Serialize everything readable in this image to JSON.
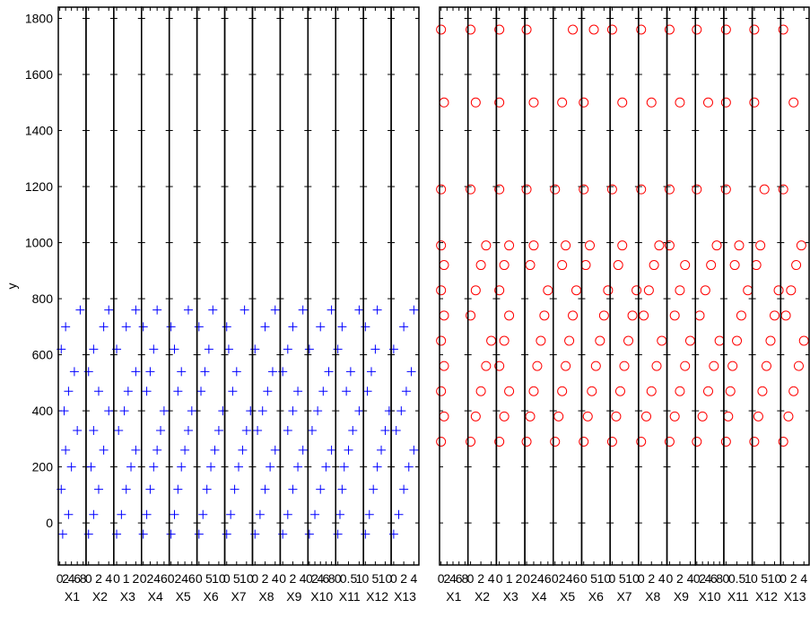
{
  "chart_data": [
    {
      "type": "scatter",
      "marker": "+",
      "color": "#0000ff",
      "ylabel": "y",
      "ylim": [
        -150,
        1840
      ],
      "yticks": [
        0,
        200,
        400,
        600,
        800,
        1000,
        1200,
        1400,
        1600,
        1800
      ],
      "y": [
        -40,
        30,
        120,
        200,
        260,
        330,
        400,
        470,
        540,
        620,
        700,
        760
      ],
      "panels": [
        {
          "xlabel": "X1",
          "xlim": [
            -0.5,
            9
          ],
          "xticks": [
            0,
            2,
            4,
            6,
            8
          ],
          "x": [
            1,
            3,
            0.5,
            4,
            2,
            6,
            1.5,
            3,
            5,
            0.5,
            2,
            7
          ]
        },
        {
          "xlabel": "X2",
          "xlim": [
            -0.5,
            5
          ],
          "xticks": [
            0,
            2,
            4
          ],
          "x": [
            0,
            1,
            2,
            0.5,
            3,
            1,
            4,
            2,
            0,
            1,
            3,
            4
          ]
        },
        {
          "xlabel": "X3",
          "xlim": [
            -0.3,
            2.6
          ],
          "xticks": [
            0,
            1,
            2
          ],
          "x": [
            0,
            0.5,
            1,
            1.5,
            2,
            0.2,
            0.8,
            1.2,
            2,
            0,
            1,
            2
          ]
        },
        {
          "xlabel": "X4",
          "xlim": [
            -0.5,
            7.5
          ],
          "xticks": [
            0,
            2,
            4,
            6
          ],
          "x": [
            0,
            1,
            2,
            3,
            4,
            5,
            6,
            1,
            2,
            3,
            0,
            4
          ]
        },
        {
          "xlabel": "X5",
          "xlim": [
            -0.5,
            7.5
          ],
          "xticks": [
            0,
            2,
            4,
            6
          ],
          "x": [
            0,
            1,
            2,
            3,
            4,
            5,
            6,
            2,
            3,
            1,
            0,
            5
          ]
        },
        {
          "xlabel": "X6",
          "xlim": [
            -1,
            13
          ],
          "xticks": [
            0,
            5,
            10
          ],
          "x": [
            0,
            2,
            4,
            6,
            8,
            10,
            12,
            1,
            3,
            5,
            0,
            7
          ]
        },
        {
          "xlabel": "X7",
          "xlim": [
            -1,
            13
          ],
          "xticks": [
            0,
            5,
            10
          ],
          "x": [
            0,
            2,
            4,
            6,
            8,
            10,
            12,
            3,
            5,
            1,
            0,
            9
          ]
        },
        {
          "xlabel": "X8",
          "xlim": [
            -0.5,
            5
          ],
          "xticks": [
            0,
            2,
            4
          ],
          "x": [
            0,
            1,
            2,
            3,
            4,
            0.5,
            1.5,
            2.5,
            3.5,
            0,
            2,
            4
          ]
        },
        {
          "xlabel": "X9",
          "xlim": [
            -0.5,
            5
          ],
          "xticks": [
            0,
            2,
            4
          ],
          "x": [
            0,
            1,
            2,
            3,
            4,
            1,
            2,
            3,
            0,
            1,
            2,
            4
          ]
        },
        {
          "xlabel": "X10",
          "xlim": [
            -0.5,
            9.5
          ],
          "xticks": [
            0,
            2,
            4,
            6,
            8
          ],
          "x": [
            0,
            2,
            4,
            6,
            8,
            1,
            3,
            5,
            7,
            0,
            4,
            8
          ]
        },
        {
          "xlabel": "X11",
          "xlim": [
            -0.1,
            1.2
          ],
          "xticks": [
            0,
            0.5,
            1
          ],
          "x": [
            0,
            0.1,
            0.2,
            0.3,
            0.5,
            0.7,
            1,
            0.4,
            0.6,
            0,
            0.2,
            1
          ]
        },
        {
          "xlabel": "X12",
          "xlim": [
            -1,
            13
          ],
          "xticks": [
            0,
            5,
            10
          ],
          "x": [
            0,
            2,
            4,
            6,
            8,
            10,
            12,
            1,
            3,
            5,
            0,
            6
          ]
        },
        {
          "xlabel": "X13",
          "xlim": [
            -0.5,
            5
          ],
          "xticks": [
            0,
            2,
            4
          ],
          "x": [
            0,
            1,
            2,
            3,
            4,
            0.5,
            1.5,
            2.5,
            3.5,
            0,
            2,
            4
          ]
        }
      ]
    },
    {
      "type": "scatter",
      "marker": "o",
      "color": "#ff0000",
      "ylim": [
        -150,
        1840
      ],
      "yticks": [
        0,
        200,
        400,
        600,
        800,
        1000,
        1200,
        1400,
        1600,
        1800
      ],
      "y": [
        290,
        380,
        470,
        560,
        650,
        740,
        830,
        920,
        990,
        1190,
        1500,
        1760
      ],
      "panels": [
        {
          "xlabel": "X1",
          "xlim": [
            -0.5,
            9
          ],
          "xticks": [
            0,
            2,
            4,
            6,
            8
          ],
          "x": [
            0,
            1,
            0,
            1,
            0,
            1,
            0,
            1,
            0,
            0,
            1,
            0
          ]
        },
        {
          "xlabel": "X2",
          "xlim": [
            -0.5,
            5
          ],
          "xticks": [
            0,
            2,
            4
          ],
          "x": [
            0,
            1,
            2,
            3,
            4,
            0,
            1,
            2,
            3,
            0,
            1,
            0
          ]
        },
        {
          "xlabel": "X3",
          "xlim": [
            -0.3,
            2.6
          ],
          "xticks": [
            0,
            1,
            2
          ],
          "x": [
            0,
            0.5,
            1,
            0,
            0.5,
            1,
            0,
            0.5,
            1,
            0,
            0,
            0
          ]
        },
        {
          "xlabel": "X4",
          "xlim": [
            -0.5,
            7.5
          ],
          "xticks": [
            0,
            2,
            4,
            6
          ],
          "x": [
            0,
            1,
            2,
            3,
            4,
            5,
            6,
            1,
            2,
            0,
            2,
            0
          ]
        },
        {
          "xlabel": "X5",
          "xlim": [
            -0.5,
            7.5
          ],
          "xticks": [
            0,
            2,
            4,
            6
          ],
          "x": [
            0,
            1,
            2,
            3,
            4,
            5,
            6,
            2,
            3,
            0,
            2,
            5
          ]
        },
        {
          "xlabel": "X6",
          "xlim": [
            -1,
            13
          ],
          "xticks": [
            0,
            5,
            10
          ],
          "x": [
            0,
            2,
            4,
            6,
            8,
            10,
            12,
            1,
            3,
            0,
            0,
            5
          ]
        },
        {
          "xlabel": "X7",
          "xlim": [
            -1,
            13
          ],
          "xticks": [
            0,
            5,
            10
          ],
          "x": [
            0,
            2,
            4,
            6,
            8,
            10,
            12,
            3,
            5,
            0,
            5,
            0
          ]
        },
        {
          "xlabel": "X8",
          "xlim": [
            -0.5,
            5
          ],
          "xticks": [
            0,
            2,
            4
          ],
          "x": [
            0,
            1,
            2,
            3,
            4,
            0.5,
            1.5,
            2.5,
            3.5,
            0,
            2,
            0
          ]
        },
        {
          "xlabel": "X9",
          "xlim": [
            -0.5,
            5
          ],
          "xticks": [
            0,
            2,
            4
          ],
          "x": [
            0,
            1,
            2,
            3,
            4,
            1,
            2,
            3,
            0,
            0,
            2,
            0
          ]
        },
        {
          "xlabel": "X10",
          "xlim": [
            -0.5,
            9.5
          ],
          "xticks": [
            0,
            2,
            4,
            6,
            8
          ],
          "x": [
            0,
            2,
            4,
            6,
            8,
            1,
            3,
            5,
            7,
            0,
            4,
            0
          ]
        },
        {
          "xlabel": "X11",
          "xlim": [
            -0.1,
            1.2
          ],
          "xticks": [
            0,
            0.5,
            1
          ],
          "x": [
            0,
            0.1,
            0.2,
            0.3,
            0.5,
            0.7,
            1,
            0.4,
            0.6,
            0,
            0,
            0
          ]
        },
        {
          "xlabel": "X12",
          "xlim": [
            -1,
            13
          ],
          "xticks": [
            0,
            5,
            10
          ],
          "x": [
            0,
            2,
            4,
            6,
            8,
            10,
            12,
            1,
            3,
            5,
            0,
            0
          ]
        },
        {
          "xlabel": "X13",
          "xlim": [
            -0.5,
            5
          ],
          "xticks": [
            0,
            2,
            4
          ],
          "x": [
            0,
            1,
            2,
            3,
            4,
            0.5,
            1.5,
            2.5,
            3.5,
            0,
            2,
            0
          ]
        }
      ]
    }
  ]
}
